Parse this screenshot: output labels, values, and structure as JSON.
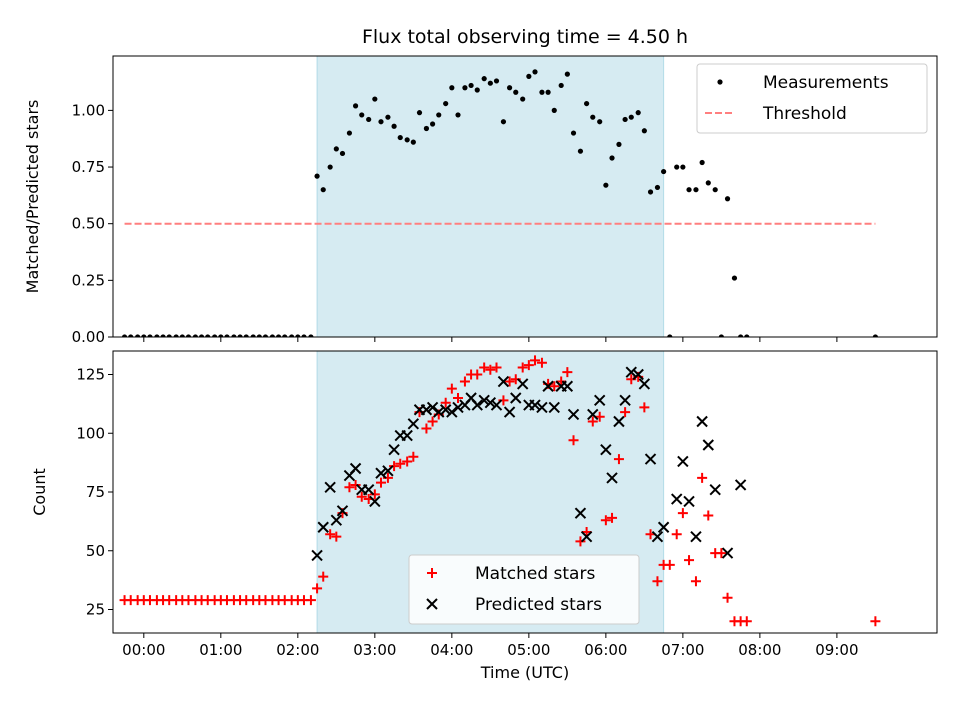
{
  "chart_data": [
    {
      "type": "scatter",
      "title": "Flux total observing time = 4.50 h",
      "xlabel": "",
      "ylabel": "Matched/Predicted stars",
      "xlim": [
        -0.4,
        10.3
      ],
      "ylim": [
        0,
        1.24
      ],
      "yticks": [
        0,
        0.25,
        0.5,
        0.75,
        1.0
      ],
      "ytick_labels": [
        "0.00",
        "0.25",
        "0.50",
        "0.75",
        "1.00"
      ],
      "shaded_region": [
        2.25,
        6.75
      ],
      "legend_position": "top-right",
      "threshold": {
        "name": "Threshold",
        "y": 0.5,
        "x_range": [
          -0.25,
          9.5
        ],
        "color": "#ff7f7f"
      },
      "series": [
        {
          "name": "Measurements",
          "marker": "dot",
          "color": "#000000",
          "points": [
            [
              -0.25,
              0
            ],
            [
              -0.17,
              0
            ],
            [
              -0.08,
              0
            ],
            [
              0.0,
              0
            ],
            [
              0.08,
              0
            ],
            [
              0.17,
              0
            ],
            [
              0.25,
              0
            ],
            [
              0.33,
              0
            ],
            [
              0.42,
              0
            ],
            [
              0.5,
              0
            ],
            [
              0.58,
              0
            ],
            [
              0.67,
              0
            ],
            [
              0.75,
              0
            ],
            [
              0.83,
              0
            ],
            [
              0.92,
              0
            ],
            [
              1.0,
              0
            ],
            [
              1.08,
              0
            ],
            [
              1.17,
              0
            ],
            [
              1.25,
              0
            ],
            [
              1.33,
              0
            ],
            [
              1.42,
              0
            ],
            [
              1.5,
              0
            ],
            [
              1.58,
              0
            ],
            [
              1.67,
              0
            ],
            [
              1.75,
              0
            ],
            [
              1.83,
              0
            ],
            [
              1.92,
              0
            ],
            [
              2.0,
              0
            ],
            [
              2.08,
              0
            ],
            [
              2.17,
              0
            ],
            [
              2.25,
              0.71
            ],
            [
              2.33,
              0.65
            ],
            [
              2.42,
              0.75
            ],
            [
              2.5,
              0.83
            ],
            [
              2.58,
              0.81
            ],
            [
              2.67,
              0.9
            ],
            [
              2.75,
              1.02
            ],
            [
              2.83,
              0.98
            ],
            [
              2.92,
              0.96
            ],
            [
              3.0,
              1.05
            ],
            [
              3.08,
              0.95
            ],
            [
              3.17,
              0.97
            ],
            [
              3.25,
              0.93
            ],
            [
              3.33,
              0.88
            ],
            [
              3.42,
              0.87
            ],
            [
              3.5,
              0.86
            ],
            [
              3.58,
              0.99
            ],
            [
              3.67,
              0.92
            ],
            [
              3.75,
              0.94
            ],
            [
              3.83,
              0.98
            ],
            [
              3.92,
              1.03
            ],
            [
              4.0,
              1.1
            ],
            [
              4.08,
              0.98
            ],
            [
              4.17,
              1.1
            ],
            [
              4.25,
              1.11
            ],
            [
              4.33,
              1.09
            ],
            [
              4.42,
              1.14
            ],
            [
              4.5,
              1.12
            ],
            [
              4.58,
              1.13
            ],
            [
              4.67,
              0.95
            ],
            [
              4.75,
              1.1
            ],
            [
              4.83,
              1.08
            ],
            [
              4.92,
              1.05
            ],
            [
              5.0,
              1.15
            ],
            [
              5.08,
              1.17
            ],
            [
              5.17,
              1.08
            ],
            [
              5.25,
              1.08
            ],
            [
              5.33,
              1.0
            ],
            [
              5.42,
              1.11
            ],
            [
              5.5,
              1.16
            ],
            [
              5.58,
              0.9
            ],
            [
              5.67,
              0.82
            ],
            [
              5.75,
              1.03
            ],
            [
              5.83,
              0.97
            ],
            [
              5.92,
              0.95
            ],
            [
              6.0,
              0.67
            ],
            [
              6.08,
              0.79
            ],
            [
              6.17,
              0.85
            ],
            [
              6.25,
              0.96
            ],
            [
              6.33,
              0.97
            ],
            [
              6.42,
              0.99
            ],
            [
              6.5,
              0.91
            ],
            [
              6.58,
              0.64
            ],
            [
              6.67,
              0.66
            ],
            [
              6.75,
              0.73
            ],
            [
              6.83,
              0.0
            ],
            [
              6.92,
              0.75
            ],
            [
              7.0,
              0.75
            ],
            [
              7.08,
              0.65
            ],
            [
              7.17,
              0.65
            ],
            [
              7.25,
              0.77
            ],
            [
              7.33,
              0.68
            ],
            [
              7.42,
              0.65
            ],
            [
              7.5,
              0.0
            ],
            [
              7.58,
              0.61
            ],
            [
              7.67,
              0.26
            ],
            [
              7.75,
              0.0
            ],
            [
              7.83,
              0.0
            ],
            [
              9.5,
              0.0
            ]
          ]
        }
      ]
    },
    {
      "type": "scatter",
      "title": "",
      "xlabel": "Time (UTC)",
      "ylabel": "Count",
      "xlim": [
        -0.4,
        10.3
      ],
      "ylim": [
        15,
        135
      ],
      "yticks": [
        25,
        50,
        75,
        100,
        125
      ],
      "ytick_labels": [
        "25",
        "50",
        "75",
        "100",
        "125"
      ],
      "xticks": [
        0,
        1,
        2,
        3,
        4,
        5,
        6,
        7,
        8,
        9
      ],
      "xtick_labels": [
        "00:00",
        "01:00",
        "02:00",
        "03:00",
        "04:00",
        "05:00",
        "06:00",
        "07:00",
        "08:00",
        "09:00"
      ],
      "shaded_region": [
        2.25,
        6.75
      ],
      "legend_position": "bottom-center",
      "series": [
        {
          "name": "Matched stars",
          "marker": "plus",
          "color": "#ff0000",
          "points": [
            [
              -0.25,
              29
            ],
            [
              -0.17,
              29
            ],
            [
              -0.08,
              29
            ],
            [
              0.0,
              29
            ],
            [
              0.08,
              29
            ],
            [
              0.17,
              29
            ],
            [
              0.25,
              29
            ],
            [
              0.33,
              29
            ],
            [
              0.42,
              29
            ],
            [
              0.5,
              29
            ],
            [
              0.58,
              29
            ],
            [
              0.67,
              29
            ],
            [
              0.75,
              29
            ],
            [
              0.83,
              29
            ],
            [
              0.92,
              29
            ],
            [
              1.0,
              29
            ],
            [
              1.08,
              29
            ],
            [
              1.17,
              29
            ],
            [
              1.25,
              29
            ],
            [
              1.33,
              29
            ],
            [
              1.42,
              29
            ],
            [
              1.5,
              29
            ],
            [
              1.58,
              29
            ],
            [
              1.67,
              29
            ],
            [
              1.75,
              29
            ],
            [
              1.83,
              29
            ],
            [
              1.92,
              29
            ],
            [
              2.0,
              29
            ],
            [
              2.08,
              29
            ],
            [
              2.17,
              29
            ],
            [
              2.25,
              34
            ],
            [
              2.33,
              39
            ],
            [
              2.42,
              57
            ],
            [
              2.5,
              56
            ],
            [
              2.58,
              66
            ],
            [
              2.67,
              77
            ],
            [
              2.75,
              78
            ],
            [
              2.83,
              73
            ],
            [
              2.92,
              72
            ],
            [
              3.0,
              74
            ],
            [
              3.08,
              79
            ],
            [
              3.17,
              81
            ],
            [
              3.25,
              86
            ],
            [
              3.33,
              87
            ],
            [
              3.42,
              88
            ],
            [
              3.5,
              90
            ],
            [
              3.58,
              109
            ],
            [
              3.67,
              102
            ],
            [
              3.75,
              105
            ],
            [
              3.83,
              108
            ],
            [
              3.92,
              113
            ],
            [
              4.0,
              119
            ],
            [
              4.08,
              115
            ],
            [
              4.17,
              122
            ],
            [
              4.25,
              125
            ],
            [
              4.33,
              125
            ],
            [
              4.42,
              128
            ],
            [
              4.5,
              127
            ],
            [
              4.58,
              128
            ],
            [
              4.67,
              114
            ],
            [
              4.75,
              122
            ],
            [
              4.83,
              123
            ],
            [
              4.92,
              128
            ],
            [
              5.0,
              129
            ],
            [
              5.08,
              131
            ],
            [
              5.17,
              130
            ],
            [
              5.25,
              121
            ],
            [
              5.33,
              120
            ],
            [
              5.42,
              122
            ],
            [
              5.5,
              126
            ],
            [
              5.58,
              97
            ],
            [
              5.67,
              54
            ],
            [
              5.75,
              58
            ],
            [
              5.83,
              105
            ],
            [
              5.92,
              107
            ],
            [
              6.0,
              63
            ],
            [
              6.08,
              64
            ],
            [
              6.17,
              89
            ],
            [
              6.25,
              109
            ],
            [
              6.33,
              123
            ],
            [
              6.42,
              124
            ],
            [
              6.5,
              111
            ],
            [
              6.58,
              57
            ],
            [
              6.67,
              37
            ],
            [
              6.75,
              44
            ],
            [
              6.83,
              44
            ],
            [
              6.92,
              57
            ],
            [
              7.0,
              66
            ],
            [
              7.08,
              46
            ],
            [
              7.17,
              37
            ],
            [
              7.25,
              81
            ],
            [
              7.33,
              65
            ],
            [
              7.42,
              49
            ],
            [
              7.5,
              49
            ],
            [
              7.58,
              30
            ],
            [
              7.67,
              20
            ],
            [
              7.75,
              20
            ],
            [
              7.83,
              20
            ],
            [
              9.5,
              20
            ]
          ]
        },
        {
          "name": "Predicted stars",
          "marker": "x",
          "color": "#000000",
          "points": [
            [
              2.25,
              48
            ],
            [
              2.33,
              60
            ],
            [
              2.42,
              77
            ],
            [
              2.5,
              63
            ],
            [
              2.58,
              67
            ],
            [
              2.67,
              82
            ],
            [
              2.75,
              85
            ],
            [
              2.83,
              76
            ],
            [
              2.92,
              76
            ],
            [
              3.0,
              71
            ],
            [
              3.08,
              83
            ],
            [
              3.17,
              84
            ],
            [
              3.25,
              93
            ],
            [
              3.33,
              99
            ],
            [
              3.42,
              99
            ],
            [
              3.5,
              104
            ],
            [
              3.58,
              110
            ],
            [
              3.67,
              110
            ],
            [
              3.75,
              111
            ],
            [
              3.83,
              109
            ],
            [
              3.92,
              110
            ],
            [
              4.0,
              109
            ],
            [
              4.08,
              111
            ],
            [
              4.17,
              112
            ],
            [
              4.25,
              115
            ],
            [
              4.33,
              112
            ],
            [
              4.42,
              114
            ],
            [
              4.5,
              113
            ],
            [
              4.58,
              112
            ],
            [
              4.67,
              122
            ],
            [
              4.75,
              109
            ],
            [
              4.83,
              115
            ],
            [
              4.92,
              121
            ],
            [
              5.0,
              112
            ],
            [
              5.08,
              112
            ],
            [
              5.17,
              111
            ],
            [
              5.25,
              120
            ],
            [
              5.33,
              111
            ],
            [
              5.42,
              120
            ],
            [
              5.5,
              120
            ],
            [
              5.58,
              108
            ],
            [
              5.67,
              66
            ],
            [
              5.75,
              56
            ],
            [
              5.83,
              108
            ],
            [
              5.92,
              114
            ],
            [
              6.0,
              93
            ],
            [
              6.08,
              81
            ],
            [
              6.17,
              105
            ],
            [
              6.25,
              114
            ],
            [
              6.33,
              126
            ],
            [
              6.42,
              125
            ],
            [
              6.5,
              121
            ],
            [
              6.58,
              89
            ],
            [
              6.67,
              56
            ],
            [
              6.75,
              60
            ],
            [
              6.92,
              72
            ],
            [
              7.0,
              88
            ],
            [
              7.08,
              71
            ],
            [
              7.17,
              56
            ],
            [
              7.25,
              105
            ],
            [
              7.33,
              95
            ],
            [
              7.42,
              76
            ],
            [
              7.58,
              49
            ],
            [
              7.75,
              78
            ]
          ]
        }
      ]
    }
  ]
}
